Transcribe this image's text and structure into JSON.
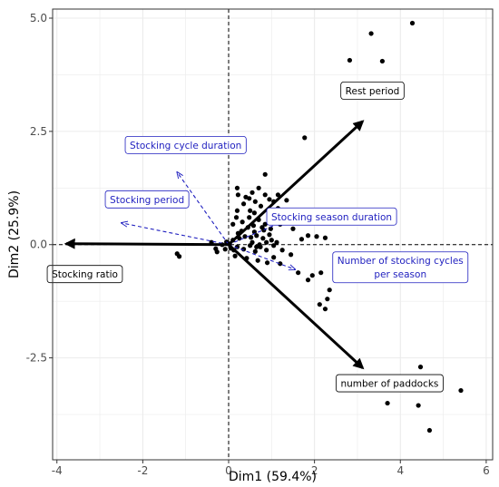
{
  "chart_data": {
    "type": "scatter",
    "xlabel": "Dim1 (59.4%)",
    "ylabel": "Dim2 (25.9%)",
    "xlim": [
      -4.1,
      6.15
    ],
    "ylim": [
      -4.75,
      5.2
    ],
    "xticks": [
      -4,
      -2,
      0,
      2,
      4,
      6
    ],
    "xtick_labels": [
      "-4",
      "-2",
      "0",
      "2",
      "4",
      "6"
    ],
    "yticks": [
      -2.5,
      0,
      2.5,
      5
    ],
    "ytick_labels": [
      "-2.5",
      "0.0",
      "2.5",
      "5.0"
    ],
    "grid": true,
    "reference_lines": {
      "x": 0,
      "y": 0,
      "style": "dashed"
    },
    "colors": {
      "active": "#000000",
      "supplementary": "#1f1fbf",
      "point": "#000000",
      "grid": "#ebebeb",
      "panel_border": "#333333"
    },
    "points": [
      [
        4.28,
        4.89
      ],
      [
        3.32,
        4.66
      ],
      [
        3.58,
        4.05
      ],
      [
        2.82,
        4.07
      ],
      [
        1.77,
        2.36
      ],
      [
        4.47,
        -2.7
      ],
      [
        5.41,
        -3.22
      ],
      [
        3.7,
        -3.5
      ],
      [
        4.42,
        -3.55
      ],
      [
        4.68,
        -4.1
      ],
      [
        -1.2,
        -0.2
      ],
      [
        -1.15,
        -0.26
      ],
      [
        -0.3,
        -0.09
      ],
      [
        -0.4,
        0.05
      ],
      [
        -0.27,
        -0.16
      ],
      [
        -0.05,
        0.06
      ],
      [
        0.1,
        0.1
      ],
      [
        0.25,
        0.14
      ],
      [
        0.38,
        0.18
      ],
      [
        0.52,
        0.16
      ],
      [
        0.65,
        0.2
      ],
      [
        0.8,
        0.14
      ],
      [
        0.95,
        0.22
      ],
      [
        0.2,
        -0.05
      ],
      [
        0.35,
        -0.1
      ],
      [
        0.5,
        -0.02
      ],
      [
        0.62,
        -0.15
      ],
      [
        0.74,
        -0.05
      ],
      [
        0.88,
        -0.12
      ],
      [
        1.05,
        -0.02
      ],
      [
        0.15,
        -0.25
      ],
      [
        0.42,
        -0.3
      ],
      [
        0.68,
        -0.35
      ],
      [
        0.9,
        -0.4
      ],
      [
        0.55,
        0.05
      ],
      [
        0.72,
        0.0
      ],
      [
        0.3,
        0.3
      ],
      [
        0.1,
        0.45
      ],
      [
        0.18,
        0.6
      ],
      [
        0.32,
        0.5
      ],
      [
        0.45,
        0.38
      ],
      [
        0.58,
        0.42
      ],
      [
        0.7,
        0.55
      ],
      [
        0.85,
        0.45
      ],
      [
        0.48,
        0.6
      ],
      [
        0.22,
        0.25
      ],
      [
        0.6,
        0.28
      ],
      [
        0.82,
        0.32
      ],
      [
        0.2,
        0.75
      ],
      [
        0.35,
        0.9
      ],
      [
        0.5,
        0.75
      ],
      [
        0.62,
        0.95
      ],
      [
        0.75,
        0.85
      ],
      [
        0.4,
        1.05
      ],
      [
        0.55,
        1.15
      ],
      [
        0.7,
        1.25
      ],
      [
        0.85,
        1.1
      ],
      [
        0.22,
        1.1
      ],
      [
        0.48,
        1.02
      ],
      [
        0.2,
        1.25
      ],
      [
        0.85,
        1.55
      ],
      [
        0.95,
        1.0
      ],
      [
        1.05,
        0.95
      ],
      [
        1.15,
        0.8
      ],
      [
        1.3,
        0.75
      ],
      [
        1.45,
        0.72
      ],
      [
        1.15,
        1.1
      ],
      [
        1.35,
        0.98
      ],
      [
        1.5,
        0.35
      ],
      [
        1.85,
        0.2
      ],
      [
        1.7,
        0.12
      ],
      [
        2.05,
        0.18
      ],
      [
        2.25,
        0.15
      ],
      [
        1.25,
        -0.12
      ],
      [
        1.45,
        -0.22
      ],
      [
        1.05,
        -0.28
      ],
      [
        1.2,
        -0.42
      ],
      [
        1.62,
        -0.62
      ],
      [
        1.95,
        -0.68
      ],
      [
        2.15,
        -0.62
      ],
      [
        1.85,
        -0.78
      ],
      [
        2.35,
        -1.0
      ],
      [
        2.12,
        -1.32
      ],
      [
        2.3,
        -1.2
      ],
      [
        2.25,
        -1.42
      ],
      [
        1.2,
        0.45
      ],
      [
        1.05,
        0.55
      ],
      [
        0.98,
        0.35
      ],
      [
        0.02,
        0.02
      ],
      [
        0.12,
        -0.12
      ],
      [
        0.65,
        -0.05
      ],
      [
        0.88,
        0.05
      ],
      [
        1.0,
        0.1
      ],
      [
        1.12,
        0.05
      ],
      [
        0.78,
        0.38
      ],
      [
        -0.15,
        0.0
      ],
      [
        -0.08,
        -0.1
      ],
      [
        0.05,
        -0.08
      ],
      [
        0.6,
        0.7
      ],
      [
        0.95,
        0.7
      ]
    ],
    "active_arrows": [
      {
        "label": "Rest period",
        "x": 3.12,
        "y": 2.72,
        "label_x": 3.35,
        "label_y": 3.4
      },
      {
        "label": "number of paddocks",
        "x": 3.12,
        "y": -2.72,
        "label_x": 3.75,
        "label_y": -3.06
      },
      {
        "label": "Stocking ratio",
        "x": -3.78,
        "y": 0.02,
        "label_x": -3.35,
        "label_y": -0.65
      }
    ],
    "supplementary_arrows": [
      {
        "label": "Stocking cycle duration",
        "x": -1.2,
        "y": 1.6,
        "label_x": -1.0,
        "label_y": 2.2
      },
      {
        "label": "Stocking period",
        "x": -2.5,
        "y": 0.48,
        "label_x": -1.9,
        "label_y": 1.0
      },
      {
        "label": "Stocking season duration",
        "x": 1.55,
        "y": 0.62,
        "label_x": 2.4,
        "label_y": 0.62
      },
      {
        "label": "Number of stocking cycles",
        "label2": "per season",
        "x": 1.55,
        "y": -0.55,
        "label_x": 4.0,
        "label_y": -0.5
      }
    ]
  }
}
